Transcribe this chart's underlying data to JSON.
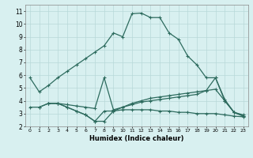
{
  "xlabel": "Humidex (Indice chaleur)",
  "curve_main_x": [
    0,
    1,
    2,
    3,
    4,
    5,
    6,
    7,
    8,
    9,
    10,
    11,
    12,
    13,
    14,
    15,
    16,
    17,
    18,
    19,
    20,
    21,
    22,
    23
  ],
  "curve_main_y": [
    5.8,
    4.7,
    5.2,
    5.8,
    6.3,
    6.8,
    7.3,
    7.8,
    8.3,
    9.3,
    9.0,
    10.8,
    10.85,
    10.5,
    10.5,
    9.3,
    8.8,
    7.5,
    6.8,
    5.8,
    5.8,
    4.1,
    3.1,
    2.9
  ],
  "curve2_x": [
    0,
    1,
    2,
    3,
    4,
    5,
    6,
    7,
    8,
    9,
    10,
    11,
    12,
    13,
    14,
    15,
    16,
    17,
    18,
    19,
    20,
    21,
    22,
    23
  ],
  "curve2_y": [
    3.5,
    3.5,
    3.8,
    3.8,
    3.5,
    3.2,
    2.9,
    2.4,
    2.4,
    3.2,
    3.5,
    3.7,
    3.9,
    4.0,
    4.1,
    4.2,
    4.3,
    4.4,
    4.5,
    4.8,
    4.9,
    4.0,
    3.1,
    2.8
  ],
  "curve3_x": [
    1,
    2,
    3,
    4,
    5,
    6,
    7,
    8,
    9,
    10,
    11,
    12,
    13,
    14,
    15,
    16,
    17,
    18,
    19,
    20,
    21,
    22,
    23
  ],
  "curve3_y": [
    3.5,
    3.8,
    3.8,
    3.7,
    3.6,
    3.5,
    3.4,
    5.8,
    3.3,
    3.5,
    3.8,
    4.0,
    4.2,
    4.3,
    4.4,
    4.5,
    4.6,
    4.7,
    4.8,
    5.8,
    4.0,
    3.1,
    2.8
  ],
  "curve4_x": [
    2,
    3,
    4,
    5,
    6,
    7,
    8,
    9,
    10,
    11,
    12,
    13,
    14,
    15,
    16,
    17,
    18,
    19,
    20,
    21,
    22,
    23
  ],
  "curve4_y": [
    3.8,
    3.8,
    3.5,
    3.2,
    2.9,
    2.4,
    3.2,
    3.2,
    3.3,
    3.3,
    3.3,
    3.3,
    3.2,
    3.2,
    3.1,
    3.1,
    3.0,
    3.0,
    3.0,
    2.9,
    2.8,
    2.75
  ],
  "color": "#2d6b5e",
  "bg_color": "#d8f0f0",
  "grid_color": "#b8d8d8",
  "ylim": [
    2,
    11.5
  ],
  "xlim": [
    -0.5,
    23.5
  ],
  "yticks": [
    2,
    3,
    4,
    5,
    6,
    7,
    8,
    9,
    10,
    11
  ],
  "xticks": [
    0,
    1,
    2,
    3,
    4,
    5,
    6,
    7,
    8,
    9,
    10,
    11,
    12,
    13,
    14,
    15,
    16,
    17,
    18,
    19,
    20,
    21,
    22,
    23
  ]
}
